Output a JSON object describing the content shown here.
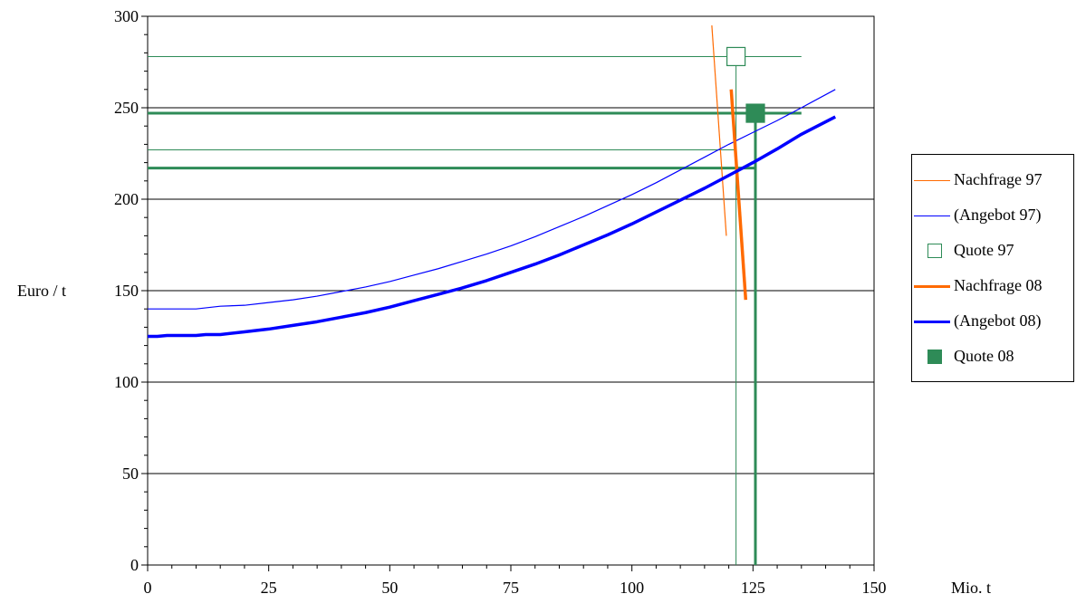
{
  "chart_data": {
    "type": "line",
    "xlabel": "Mio. t",
    "ylabel": "Euro / t",
    "xlim": [
      0,
      150
    ],
    "ylim": [
      0,
      300
    ],
    "xticks": [
      "0",
      "25",
      "50",
      "75",
      "100",
      "125",
      "150"
    ],
    "yticks": [
      "0",
      "50",
      "100",
      "150",
      "200",
      "250",
      "300"
    ],
    "grid": "horizontal",
    "legend_position": "right",
    "colors": {
      "nachfrage": "#ff6a00",
      "angebot": "#0000ff",
      "quote": "#2e8b57"
    },
    "series": [
      {
        "name": "Nachfrage 97",
        "style": "thin",
        "color": "#ff6a00",
        "x": [
          116.5,
          119.5
        ],
        "y": [
          295,
          180
        ]
      },
      {
        "name": "(Angebot 97)",
        "style": "thin",
        "color": "#0000ff",
        "x": [
          0,
          10,
          15,
          20,
          25,
          30,
          35,
          40,
          45,
          50,
          55,
          60,
          65,
          70,
          75,
          80,
          85,
          90,
          95,
          100,
          105,
          110,
          115,
          120,
          125,
          130,
          135,
          142
        ],
        "y": [
          140,
          140,
          141.5,
          142,
          143.5,
          145,
          147,
          149.5,
          152,
          155,
          158.5,
          162,
          166,
          170,
          174.5,
          179.5,
          185,
          190.5,
          196.5,
          202.5,
          209,
          216,
          223,
          230,
          236.5,
          243,
          250,
          260
        ]
      },
      {
        "name": "Quote 97",
        "style": "marker-hollow",
        "color": "#2e8b57",
        "x": [
          121.5
        ],
        "y": [
          278
        ]
      },
      {
        "name": "Nachfrage 08",
        "style": "thick",
        "color": "#ff6a00",
        "x": [
          120.5,
          123.5
        ],
        "y": [
          260,
          145
        ]
      },
      {
        "name": "(Angebot 08)",
        "style": "thick",
        "color": "#0000ff",
        "x": [
          0,
          2,
          4,
          10,
          12,
          15,
          20,
          25,
          30,
          35,
          40,
          45,
          50,
          55,
          60,
          65,
          70,
          75,
          80,
          85,
          90,
          95,
          100,
          105,
          110,
          115,
          120,
          125,
          130,
          135,
          142
        ],
        "y": [
          125,
          125,
          125.5,
          125.5,
          126,
          126,
          127.5,
          129,
          131,
          133,
          135.5,
          138,
          141,
          144.5,
          148,
          151.5,
          155.5,
          160,
          164.5,
          169.5,
          175,
          180.5,
          186.5,
          193,
          199.5,
          206,
          213,
          220,
          227.5,
          235.5,
          245
        ]
      },
      {
        "name": "Quote 08",
        "style": "marker-filled",
        "color": "#2e8b57",
        "x": [
          125.5
        ],
        "y": [
          247
        ]
      }
    ],
    "reference_lines": [
      {
        "series": "Quote 97",
        "orientation": "horizontal",
        "value": 278,
        "from": 0,
        "to": 135,
        "style": "thin"
      },
      {
        "series": "Quote 97",
        "orientation": "horizontal",
        "value": 227,
        "from": 0,
        "to": 121.5,
        "style": "thin"
      },
      {
        "series": "Quote 97",
        "orientation": "vertical",
        "value": 121.5,
        "from": 0,
        "to": 278,
        "style": "thin"
      },
      {
        "series": "Quote 08",
        "orientation": "horizontal",
        "value": 247,
        "from": 0,
        "to": 135,
        "style": "thick"
      },
      {
        "series": "Quote 08",
        "orientation": "horizontal",
        "value": 217,
        "from": 0,
        "to": 125.5,
        "style": "thick"
      },
      {
        "series": "Quote 08",
        "orientation": "vertical",
        "value": 125.5,
        "from": 0,
        "to": 247,
        "style": "thick"
      }
    ]
  }
}
